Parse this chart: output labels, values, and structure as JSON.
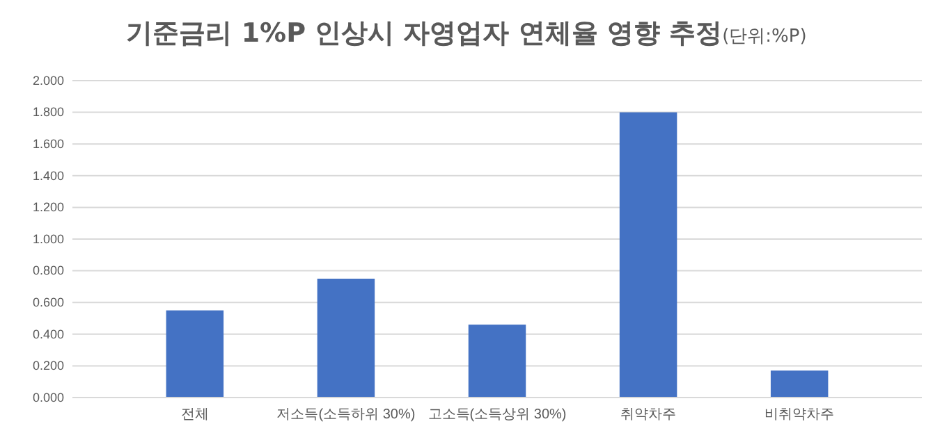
{
  "chart_data": {
    "type": "bar",
    "title": "기준금리 1%P 인상시 자영업자 연체율 영향 추정",
    "subtitle": "(단위:%P)",
    "categories": [
      "전체",
      "저소득(소득하위 30%)",
      "고소득(소득상위 30%)",
      "취약차주",
      "비취약차주"
    ],
    "values": [
      0.55,
      0.75,
      0.46,
      1.8,
      0.17
    ],
    "color": "#4472c4",
    "ylim": [
      0,
      2
    ],
    "yticks": [
      {
        "value": 0,
        "label": "0.000"
      },
      {
        "value": 0.2,
        "label": "0.200"
      },
      {
        "value": 0.4,
        "label": "0.400"
      },
      {
        "value": 0.6,
        "label": "0.600"
      },
      {
        "value": 0.8,
        "label": "0.800"
      },
      {
        "value": 1,
        "label": "1.000"
      },
      {
        "value": 1.2,
        "label": "1.200"
      },
      {
        "value": 1.4,
        "label": "1.400"
      },
      {
        "value": 1.6,
        "label": "1.600"
      },
      {
        "value": 1.8,
        "label": "1.800"
      },
      {
        "value": 2,
        "label": "2.000"
      }
    ],
    "grid": "y"
  }
}
